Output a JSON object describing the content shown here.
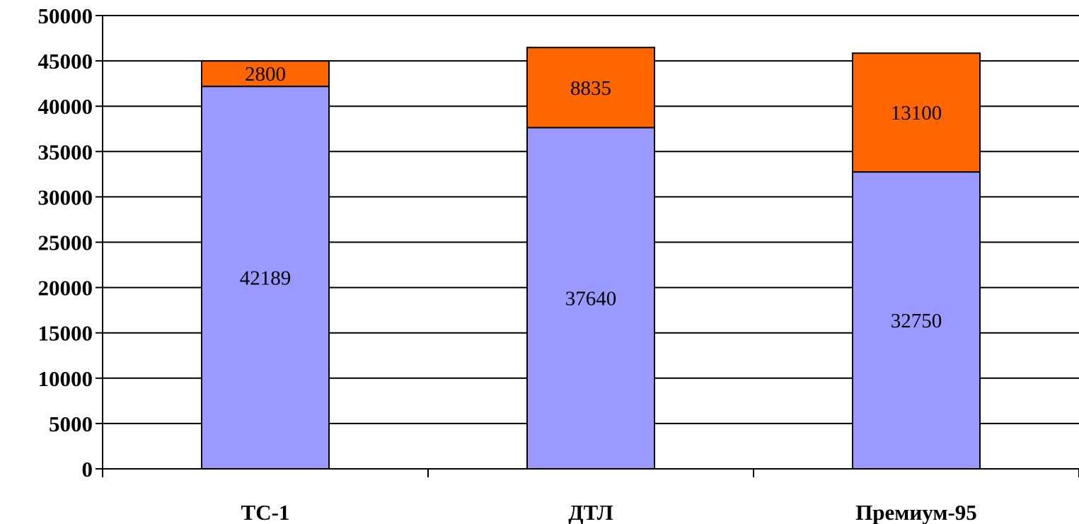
{
  "chart_data": {
    "type": "bar",
    "stacked": true,
    "categories": [
      "ТС-1",
      "ДТЛ",
      "Премиум-95"
    ],
    "series": [
      {
        "values": [
          42189,
          37640,
          32750
        ],
        "color": "#9999ff"
      },
      {
        "values": [
          2800,
          8835,
          13100
        ],
        "color": "#ff6600"
      }
    ],
    "ylim": [
      0,
      50000
    ],
    "ytick_step": 5000,
    "yticks": [
      "0",
      "5000",
      "10000",
      "15000",
      "20000",
      "25000",
      "30000",
      "35000",
      "40000",
      "45000",
      "50000"
    ],
    "grid": true,
    "legend": "none",
    "data_labels": true
  }
}
